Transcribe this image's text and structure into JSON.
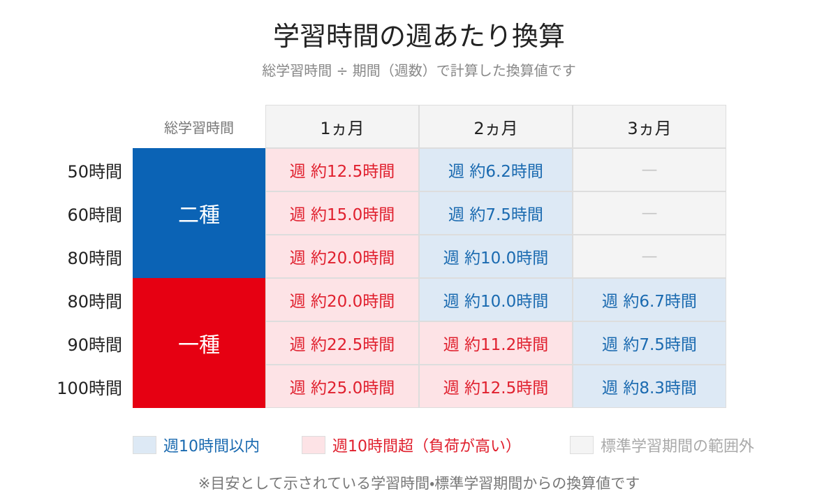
{
  "title": "学習時間の週あたり換算",
  "subtitle": "総学習時間 ÷ 期間（週数）で計算した換算値です",
  "table": {
    "corner": "総学習時間",
    "columns": [
      "1ヵ月",
      "2ヵ月",
      "3ヵ月"
    ],
    "groups": [
      {
        "label": "二種",
        "color": "#0b63b5",
        "rows": [
          {
            "label": "50時間",
            "cells": [
              {
                "text": "週 約12.5時間",
                "color": "#e0202e",
                "background": "#fde3e6"
              },
              {
                "text": "週 約6.2時間",
                "color": "#1a6ab0",
                "background": "#dde9f5"
              },
              {
                "text": "—",
                "color": "#c4c4c4",
                "background": "#f4f4f4"
              }
            ]
          },
          {
            "label": "60時間",
            "cells": [
              {
                "text": "週 約15.0時間",
                "color": "#e0202e",
                "background": "#fde3e6"
              },
              {
                "text": "週 約7.5時間",
                "color": "#1a6ab0",
                "background": "#dde9f5"
              },
              {
                "text": "—",
                "color": "#c4c4c4",
                "background": "#f4f4f4"
              }
            ]
          },
          {
            "label": "80時間",
            "cells": [
              {
                "text": "週 約20.0時間",
                "color": "#e0202e",
                "background": "#fde3e6"
              },
              {
                "text": "週 約10.0時間",
                "color": "#1a6ab0",
                "background": "#dde9f5"
              },
              {
                "text": "—",
                "color": "#c4c4c4",
                "background": "#f4f4f4"
              }
            ]
          }
        ]
      },
      {
        "label": "一種",
        "color": "#e60012",
        "rows": [
          {
            "label": "80時間",
            "cells": [
              {
                "text": "週 約20.0時間",
                "color": "#e0202e",
                "background": "#fde3e6"
              },
              {
                "text": "週 約10.0時間",
                "color": "#1a6ab0",
                "background": "#dde9f5"
              },
              {
                "text": "週 約6.7時間",
                "color": "#1a6ab0",
                "background": "#dde9f5"
              }
            ]
          },
          {
            "label": "90時間",
            "cells": [
              {
                "text": "週 約22.5時間",
                "color": "#e0202e",
                "background": "#fde3e6"
              },
              {
                "text": "週 約11.2時間",
                "color": "#e0202e",
                "background": "#fde3e6"
              },
              {
                "text": "週 約7.5時間",
                "color": "#1a6ab0",
                "background": "#dde9f5"
              }
            ]
          },
          {
            "label": "100時間",
            "cells": [
              {
                "text": "週 約25.0時間",
                "color": "#e0202e",
                "background": "#fde3e6"
              },
              {
                "text": "週 約12.5時間",
                "color": "#e0202e",
                "background": "#fde3e6"
              },
              {
                "text": "週 約8.3時間",
                "color": "#1a6ab0",
                "background": "#dde9f5"
              }
            ]
          }
        ]
      }
    ]
  },
  "legend": [
    {
      "label": "週10時間以内",
      "color": "#1a6ab0",
      "swatch": "#dde9f5"
    },
    {
      "label": "週10時間超（負荷が高い）",
      "color": "#e0202e",
      "swatch": "#fde3e6"
    },
    {
      "label": "標準学習期間の範囲外",
      "color": "#aaaaaa",
      "swatch": "#f4f4f4"
    }
  ],
  "footnote": "※目安として示されている学習時間・標準学習期間からの換算値です"
}
